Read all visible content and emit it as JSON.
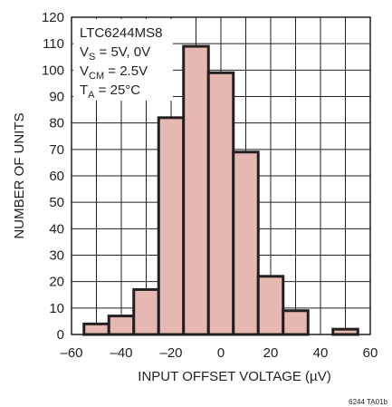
{
  "chart_data": {
    "type": "bar",
    "subtype": "histogram",
    "xlabel": "INPUT OFFSET VOLTAGE (µV)",
    "ylabel": "NUMBER OF UNITS",
    "xlim": [
      -60,
      60
    ],
    "ylim": [
      0,
      120
    ],
    "x_ticks": [
      "–60",
      "–40",
      "–20",
      "0",
      "20",
      "40",
      "60"
    ],
    "y_ticks": [
      "0",
      "10",
      "20",
      "30",
      "40",
      "50",
      "60",
      "70",
      "80",
      "90",
      "100",
      "110",
      "120"
    ],
    "grid": true,
    "bar_color": "#e5b9b2",
    "bins": [
      {
        "x0": -55,
        "x1": -45,
        "value": 4
      },
      {
        "x0": -45,
        "x1": -35,
        "value": 7
      },
      {
        "x0": -35,
        "x1": -25,
        "value": 17
      },
      {
        "x0": -25,
        "x1": -15,
        "value": 82
      },
      {
        "x0": -15,
        "x1": -5,
        "value": 109
      },
      {
        "x0": -5,
        "x1": 5,
        "value": 99
      },
      {
        "x0": 5,
        "x1": 15,
        "value": 69
      },
      {
        "x0": 15,
        "x1": 25,
        "value": 22
      },
      {
        "x0": 25,
        "x1": 35,
        "value": 9
      },
      {
        "x0": 35,
        "x1": 45,
        "value": 0
      },
      {
        "x0": 45,
        "x1": 55,
        "value": 2
      }
    ],
    "annotation": {
      "part": "LTC6244MS8",
      "vs_label": "V",
      "vs_sub": "S",
      "vs_value": " = 5V, 0V",
      "vcm_label": "V",
      "vcm_sub": "CM",
      "vcm_value": " = 2.5V",
      "ta_label": "T",
      "ta_sub": "A",
      "ta_value": " = 25°C"
    },
    "figure_id": "6244 TA01b"
  }
}
